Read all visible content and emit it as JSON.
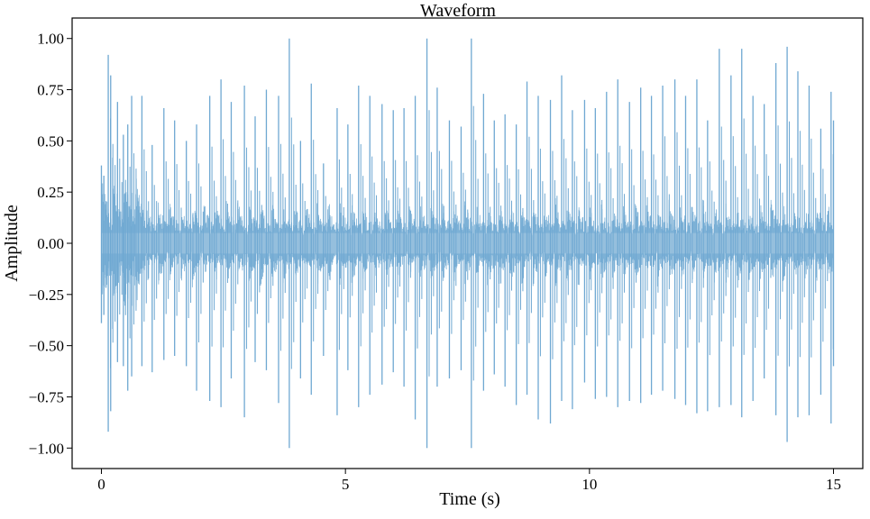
{
  "chart_data": {
    "type": "line",
    "title": "Waveform",
    "xlabel": "Time (s)",
    "ylabel": "Amplitude",
    "xlim": [
      -0.6,
      15.6
    ],
    "ylim": [
      -1.1,
      1.1
    ],
    "x_ticks": [
      0,
      5,
      10,
      15
    ],
    "x_tick_labels": [
      "0",
      "5",
      "10",
      "15"
    ],
    "y_ticks": [
      1.0,
      0.75,
      0.5,
      0.25,
      0.0,
      -0.25,
      -0.5,
      -0.75,
      -1.0
    ],
    "y_tick_labels": [
      "1.00",
      "0.75",
      "0.50",
      "0.25",
      "0.00",
      "−0.25",
      "−0.50",
      "−0.75",
      "−1.00"
    ],
    "grid": false,
    "line_color": "#6fa8d2",
    "fill_color": "#a9cbe4",
    "series": [
      {
        "duration_s": 15,
        "envelope": {
          "x": [
            0,
            0.05,
            0.14,
            0.19,
            0.33,
            0.45,
            0.54,
            0.62,
            0.83,
            1.04,
            1.28,
            1.5,
            1.74,
            1.95,
            2.22,
            2.45,
            2.66,
            2.93,
            3.15,
            3.38,
            3.63,
            3.85,
            4.08,
            4.3,
            4.55,
            4.83,
            5.05,
            5.27,
            5.5,
            5.75,
            5.98,
            6.2,
            6.43,
            6.67,
            6.88,
            7.13,
            7.37,
            7.58,
            7.83,
            8.05,
            8.27,
            8.5,
            8.72,
            8.95,
            9.2,
            9.43,
            9.65,
            9.9,
            10.12,
            10.35,
            10.58,
            10.82,
            11.05,
            11.27,
            11.5,
            11.75,
            11.97,
            12.2,
            12.42,
            12.66,
            12.9,
            13.12,
            13.35,
            13.58,
            13.82,
            14.05,
            14.27,
            14.5,
            14.74,
            14.95,
            15.0
          ],
          "upper": [
            0.38,
            0.33,
            0.92,
            0.82,
            0.69,
            0.53,
            0.58,
            0.72,
            0.72,
            0.48,
            0.66,
            0.6,
            0.5,
            0.58,
            0.72,
            0.8,
            0.69,
            0.77,
            0.62,
            0.75,
            0.72,
            1.0,
            0.5,
            0.78,
            0.39,
            0.66,
            0.58,
            0.77,
            0.72,
            0.68,
            0.65,
            0.66,
            0.72,
            1.0,
            0.76,
            0.6,
            0.57,
            1.0,
            0.73,
            0.6,
            0.63,
            0.58,
            0.79,
            0.72,
            0.7,
            0.82,
            0.65,
            0.7,
            0.66,
            0.74,
            0.8,
            0.69,
            0.76,
            0.72,
            0.77,
            0.8,
            0.72,
            0.8,
            0.6,
            0.95,
            0.82,
            0.95,
            0.72,
            0.68,
            0.88,
            0.96,
            0.84,
            0.77,
            0.56,
            0.74,
            0.6
          ],
          "lower": [
            -0.39,
            -0.35,
            -0.92,
            -0.82,
            -0.58,
            -0.6,
            -0.72,
            -0.65,
            -0.6,
            -0.63,
            -0.57,
            -0.55,
            -0.6,
            -0.72,
            -0.77,
            -0.8,
            -0.66,
            -0.85,
            -0.58,
            -0.62,
            -0.78,
            -1.0,
            -0.66,
            -0.74,
            -0.55,
            -0.84,
            -0.62,
            -0.8,
            -0.74,
            -0.69,
            -0.63,
            -0.7,
            -0.86,
            -1.0,
            -0.7,
            -0.66,
            -0.62,
            -1.0,
            -0.72,
            -0.64,
            -0.7,
            -0.79,
            -0.74,
            -0.86,
            -0.88,
            -0.77,
            -0.81,
            -0.68,
            -0.76,
            -0.75,
            -0.8,
            -0.77,
            -0.78,
            -0.74,
            -0.72,
            -0.76,
            -0.79,
            -0.83,
            -0.82,
            -0.8,
            -0.79,
            -0.85,
            -0.77,
            -0.66,
            -0.84,
            -0.97,
            -0.85,
            -0.84,
            -0.74,
            -0.88,
            -0.6
          ]
        },
        "body_amplitude": 0.22
      }
    ]
  }
}
